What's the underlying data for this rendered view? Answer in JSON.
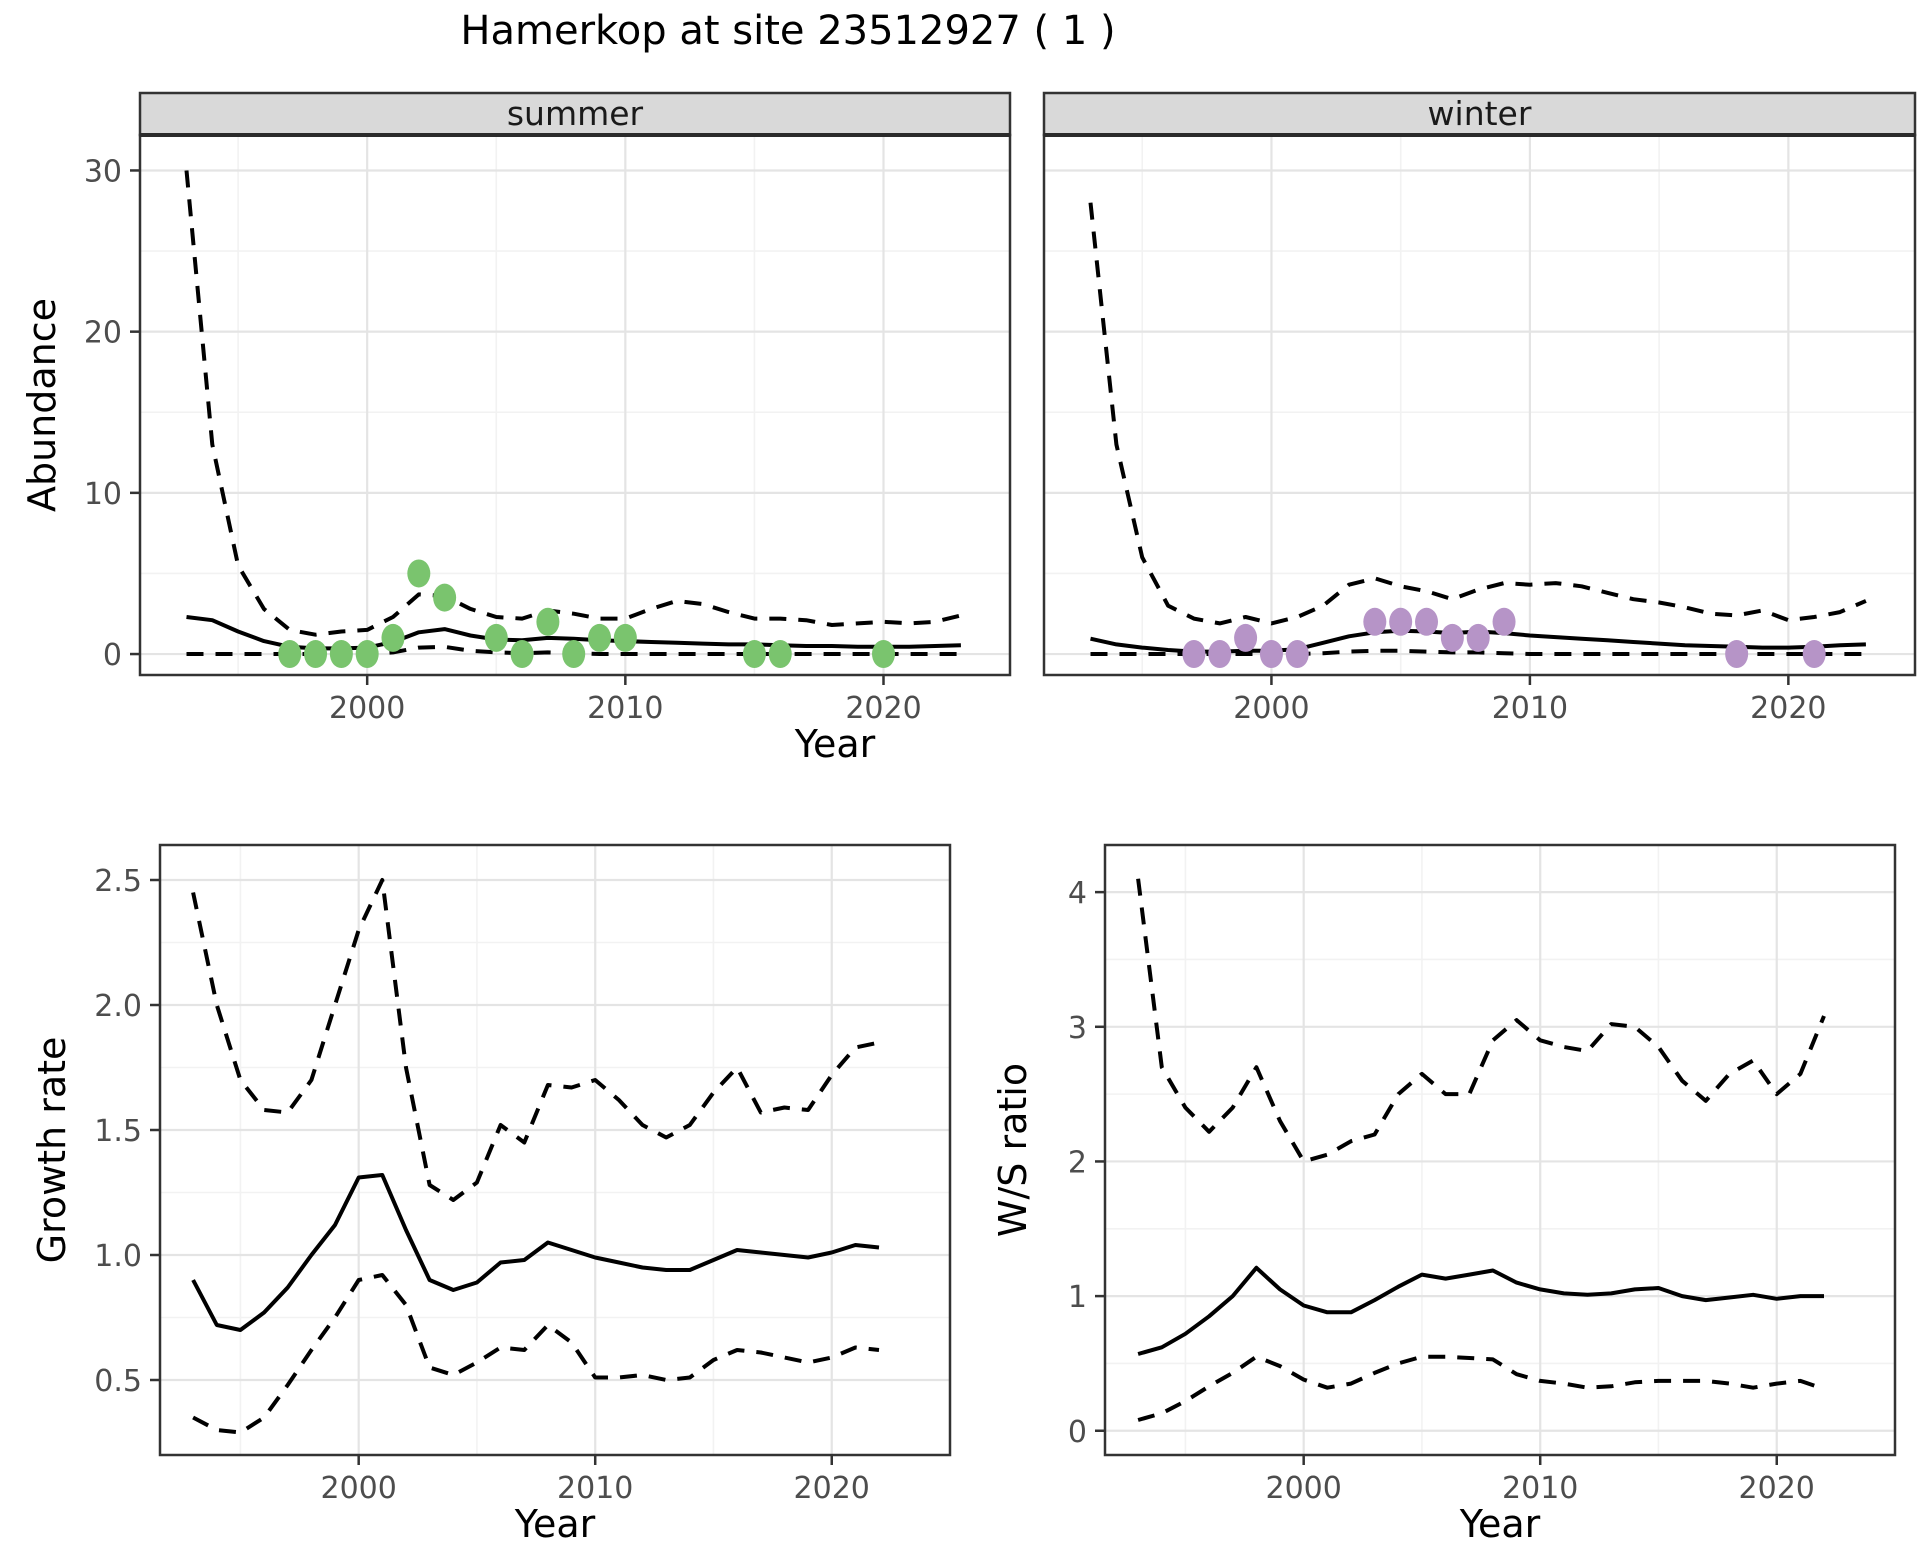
{
  "title": "Hamerkop at site 23512927 ( 1 )",
  "labels": {
    "top_xlabel": "Year"
  },
  "colors": {
    "summer_points": "#7ac46e",
    "winter_points": "#b694c7",
    "line": "#000000",
    "strip_bg": "#d9d9d9",
    "panel_border": "#333333",
    "grid_major": "#e4e4e4",
    "grid_minor": "#f2f2f2",
    "tick_mark": "#333333",
    "axis_text": "#4d4d4d"
  },
  "chart_data": [
    {
      "id": "abundance-summer",
      "type": "line",
      "strip": "summer",
      "xlabel": "Year",
      "ylabel": "Abundance",
      "xlim": [
        1991.2,
        2024.9
      ],
      "ylim": [
        -1.3,
        32.2
      ],
      "x_ticks": [
        {
          "v": 2000,
          "label": "2000"
        },
        {
          "v": 2010,
          "label": "2010"
        },
        {
          "v": 2020,
          "label": "2020"
        }
      ],
      "x_minor": [
        1995,
        2005,
        2015
      ],
      "y_ticks": [
        {
          "v": 0,
          "label": "0"
        },
        {
          "v": 10,
          "label": "10"
        },
        {
          "v": 20,
          "label": "20"
        },
        {
          "v": 30,
          "label": "30"
        }
      ],
      "y_minor": [
        5,
        15,
        25
      ],
      "show_y_labels": true,
      "years": [
        1993,
        1994,
        1995,
        1996,
        1997,
        1998,
        1999,
        2000,
        2001,
        2002,
        2003,
        2004,
        2005,
        2006,
        2007,
        2008,
        2009,
        2010,
        2011,
        2012,
        2013,
        2014,
        2015,
        2016,
        2017,
        2018,
        2019,
        2020,
        2021,
        2022,
        2023
      ],
      "series": [
        {
          "name": "upper-ci",
          "style": "dashed",
          "values": [
            30,
            13,
            5.5,
            2.8,
            1.5,
            1.2,
            1.4,
            1.5,
            2.3,
            3.7,
            3.6,
            2.8,
            2.3,
            2.2,
            2.7,
            2.5,
            2.2,
            2.2,
            2.8,
            3.3,
            3.1,
            2.6,
            2.2,
            2.2,
            2.1,
            1.8,
            1.9,
            2.0,
            1.9,
            2.0,
            2.4
          ]
        },
        {
          "name": "mean",
          "style": "solid",
          "values": [
            2.3,
            2.1,
            1.4,
            0.8,
            0.45,
            0.35,
            0.35,
            0.4,
            0.75,
            1.35,
            1.55,
            1.15,
            0.9,
            0.85,
            1.0,
            0.95,
            0.85,
            0.8,
            0.75,
            0.7,
            0.65,
            0.6,
            0.6,
            0.55,
            0.5,
            0.5,
            0.45,
            0.45,
            0.45,
            0.5,
            0.55
          ]
        },
        {
          "name": "lower-ci",
          "style": "dashed",
          "values": [
            0,
            0,
            0,
            0,
            0,
            0,
            0,
            0,
            0.1,
            0.4,
            0.45,
            0.2,
            0.1,
            0.05,
            0.1,
            0.05,
            0,
            0,
            0,
            0,
            0,
            0,
            0,
            0,
            0,
            0,
            0,
            0,
            0,
            0,
            0
          ]
        }
      ],
      "points": {
        "name": "summer-observations",
        "color_key": "summer_points",
        "data": [
          [
            1997,
            0
          ],
          [
            1998,
            0
          ],
          [
            1999,
            0
          ],
          [
            2000,
            0
          ],
          [
            2001,
            1
          ],
          [
            2002,
            5
          ],
          [
            2003,
            3.5
          ],
          [
            2005,
            1
          ],
          [
            2006,
            0
          ],
          [
            2007,
            2
          ],
          [
            2008,
            0
          ],
          [
            2009,
            1
          ],
          [
            2010,
            1
          ],
          [
            2015,
            0
          ],
          [
            2016,
            0
          ],
          [
            2020,
            0
          ]
        ]
      }
    },
    {
      "id": "abundance-winter",
      "type": "line",
      "strip": "winter",
      "xlabel": "Year",
      "ylabel": "Abundance",
      "xlim": [
        1991.2,
        2024.9
      ],
      "ylim": [
        -1.3,
        32.2
      ],
      "x_ticks": [
        {
          "v": 2000,
          "label": "2000"
        },
        {
          "v": 2010,
          "label": "2010"
        },
        {
          "v": 2020,
          "label": "2020"
        }
      ],
      "x_minor": [
        1995,
        2005,
        2015
      ],
      "y_ticks": [
        {
          "v": 0,
          "label": "0"
        },
        {
          "v": 10,
          "label": "10"
        },
        {
          "v": 20,
          "label": "20"
        },
        {
          "v": 30,
          "label": "30"
        }
      ],
      "y_minor": [
        5,
        15,
        25
      ],
      "show_y_labels": false,
      "years": [
        1993,
        1994,
        1995,
        1996,
        1997,
        1998,
        1999,
        2000,
        2001,
        2002,
        2003,
        2004,
        2005,
        2006,
        2007,
        2008,
        2009,
        2010,
        2011,
        2012,
        2013,
        2014,
        2015,
        2016,
        2017,
        2018,
        2019,
        2020,
        2021,
        2022,
        2023
      ],
      "series": [
        {
          "name": "upper-ci",
          "style": "dashed",
          "values": [
            28,
            13,
            6,
            3.0,
            2.2,
            1.9,
            2.3,
            1.9,
            2.3,
            3.0,
            4.3,
            4.7,
            4.2,
            3.9,
            3.4,
            4.0,
            4.4,
            4.3,
            4.4,
            4.2,
            3.8,
            3.4,
            3.2,
            2.9,
            2.5,
            2.4,
            2.7,
            2.1,
            2.3,
            2.6,
            3.3
          ]
        },
        {
          "name": "mean",
          "style": "solid",
          "values": [
            0.95,
            0.6,
            0.4,
            0.25,
            0.15,
            0.15,
            0.2,
            0.2,
            0.3,
            0.7,
            1.1,
            1.35,
            1.45,
            1.4,
            1.3,
            1.4,
            1.3,
            1.15,
            1.05,
            0.95,
            0.85,
            0.75,
            0.65,
            0.55,
            0.5,
            0.45,
            0.4,
            0.4,
            0.45,
            0.55,
            0.6
          ]
        },
        {
          "name": "lower-ci",
          "style": "dashed",
          "values": [
            0,
            0,
            0,
            0,
            0,
            0,
            0,
            0,
            0,
            0.05,
            0.15,
            0.2,
            0.2,
            0.15,
            0.1,
            0.1,
            0.05,
            0,
            0,
            0,
            0,
            0,
            0,
            0,
            0,
            0,
            0,
            0,
            0,
            0,
            0
          ]
        }
      ],
      "points": {
        "name": "winter-observations",
        "color_key": "winter_points",
        "data": [
          [
            1997,
            0
          ],
          [
            1998,
            0
          ],
          [
            1999,
            1
          ],
          [
            2000,
            0
          ],
          [
            2001,
            0
          ],
          [
            2004,
            2
          ],
          [
            2005,
            2
          ],
          [
            2006,
            2
          ],
          [
            2007,
            1
          ],
          [
            2008,
            1
          ],
          [
            2009,
            2
          ],
          [
            2018,
            0
          ],
          [
            2021,
            0
          ]
        ]
      }
    },
    {
      "id": "growth-rate",
      "type": "line",
      "strip": null,
      "xlabel": "Year",
      "ylabel": "Growth rate",
      "xlim": [
        1991.6,
        2025.0
      ],
      "ylim": [
        0.2,
        2.64
      ],
      "x_ticks": [
        {
          "v": 2000,
          "label": "2000"
        },
        {
          "v": 2010,
          "label": "2010"
        },
        {
          "v": 2020,
          "label": "2020"
        }
      ],
      "x_minor": [
        1995,
        2005,
        2015
      ],
      "y_ticks": [
        {
          "v": 0.5,
          "label": "0.5"
        },
        {
          "v": 1.0,
          "label": "1.0"
        },
        {
          "v": 1.5,
          "label": "1.5"
        },
        {
          "v": 2.0,
          "label": "2.0"
        },
        {
          "v": 2.5,
          "label": "2.5"
        }
      ],
      "y_minor": [
        0.75,
        1.25,
        1.75,
        2.25
      ],
      "show_y_labels": true,
      "years": [
        1993,
        1994,
        1995,
        1996,
        1997,
        1998,
        1999,
        2000,
        2001,
        2002,
        2003,
        2004,
        2005,
        2006,
        2007,
        2008,
        2009,
        2010,
        2011,
        2012,
        2013,
        2014,
        2015,
        2016,
        2017,
        2018,
        2019,
        2020,
        2021,
        2022
      ],
      "series": [
        {
          "name": "upper-ci",
          "style": "dashed",
          "values": [
            2.45,
            2.0,
            1.7,
            1.58,
            1.57,
            1.7,
            2.0,
            2.3,
            2.5,
            1.75,
            1.28,
            1.22,
            1.29,
            1.52,
            1.45,
            1.68,
            1.67,
            1.7,
            1.62,
            1.52,
            1.47,
            1.52,
            1.65,
            1.75,
            1.57,
            1.59,
            1.58,
            1.72,
            1.83,
            1.85
          ]
        },
        {
          "name": "mean",
          "style": "solid",
          "values": [
            0.9,
            0.72,
            0.7,
            0.77,
            0.87,
            1.0,
            1.12,
            1.31,
            1.32,
            1.1,
            0.9,
            0.86,
            0.89,
            0.97,
            0.98,
            1.05,
            1.02,
            0.99,
            0.97,
            0.95,
            0.94,
            0.94,
            0.98,
            1.02,
            1.01,
            1.0,
            0.99,
            1.01,
            1.04,
            1.03
          ]
        },
        {
          "name": "lower-ci",
          "style": "dashed",
          "values": [
            0.35,
            0.3,
            0.29,
            0.35,
            0.48,
            0.62,
            0.75,
            0.9,
            0.92,
            0.8,
            0.55,
            0.52,
            0.57,
            0.63,
            0.62,
            0.72,
            0.65,
            0.51,
            0.51,
            0.52,
            0.5,
            0.51,
            0.58,
            0.62,
            0.61,
            0.59,
            0.57,
            0.59,
            0.63,
            0.62
          ]
        }
      ],
      "points": null
    },
    {
      "id": "ws-ratio",
      "type": "line",
      "strip": null,
      "xlabel": "Year",
      "ylabel": "W/S ratio",
      "xlim": [
        1991.6,
        2025.0
      ],
      "ylim": [
        -0.18,
        4.35
      ],
      "x_ticks": [
        {
          "v": 2000,
          "label": "2000"
        },
        {
          "v": 2010,
          "label": "2010"
        },
        {
          "v": 2020,
          "label": "2020"
        }
      ],
      "x_minor": [
        1995,
        2005,
        2015
      ],
      "y_ticks": [
        {
          "v": 0,
          "label": "0"
        },
        {
          "v": 1,
          "label": "1"
        },
        {
          "v": 2,
          "label": "2"
        },
        {
          "v": 3,
          "label": "3"
        },
        {
          "v": 4,
          "label": "4"
        }
      ],
      "y_minor": [
        0.5,
        1.5,
        2.5,
        3.5
      ],
      "show_y_labels": true,
      "years": [
        1993,
        1994,
        1995,
        1996,
        1997,
        1998,
        1999,
        2000,
        2001,
        2002,
        2003,
        2004,
        2005,
        2006,
        2007,
        2008,
        2009,
        2010,
        2011,
        2012,
        2013,
        2014,
        2015,
        2016,
        2017,
        2018,
        2019,
        2020,
        2021,
        2022
      ],
      "series": [
        {
          "name": "upper-ci",
          "style": "dashed",
          "values": [
            4.1,
            2.7,
            2.4,
            2.22,
            2.4,
            2.7,
            2.3,
            2.0,
            2.05,
            2.15,
            2.2,
            2.5,
            2.65,
            2.5,
            2.5,
            2.9,
            3.05,
            2.9,
            2.85,
            2.82,
            3.02,
            3.0,
            2.85,
            2.6,
            2.45,
            2.65,
            2.75,
            2.5,
            2.65,
            3.08
          ]
        },
        {
          "name": "mean",
          "style": "solid",
          "values": [
            0.57,
            0.62,
            0.72,
            0.85,
            1.0,
            1.21,
            1.05,
            0.93,
            0.88,
            0.88,
            0.97,
            1.07,
            1.16,
            1.13,
            1.16,
            1.19,
            1.1,
            1.05,
            1.02,
            1.01,
            1.02,
            1.05,
            1.06,
            1.0,
            0.97,
            0.99,
            1.01,
            0.98,
            1.0,
            1.0
          ]
        },
        {
          "name": "lower-ci",
          "style": "dashed",
          "values": [
            0.08,
            0.13,
            0.22,
            0.33,
            0.43,
            0.55,
            0.48,
            0.38,
            0.32,
            0.35,
            0.43,
            0.5,
            0.55,
            0.55,
            0.54,
            0.53,
            0.42,
            0.37,
            0.35,
            0.32,
            0.33,
            0.36,
            0.37,
            0.37,
            0.37,
            0.35,
            0.32,
            0.35,
            0.37,
            0.31
          ]
        }
      ],
      "points": null
    }
  ]
}
